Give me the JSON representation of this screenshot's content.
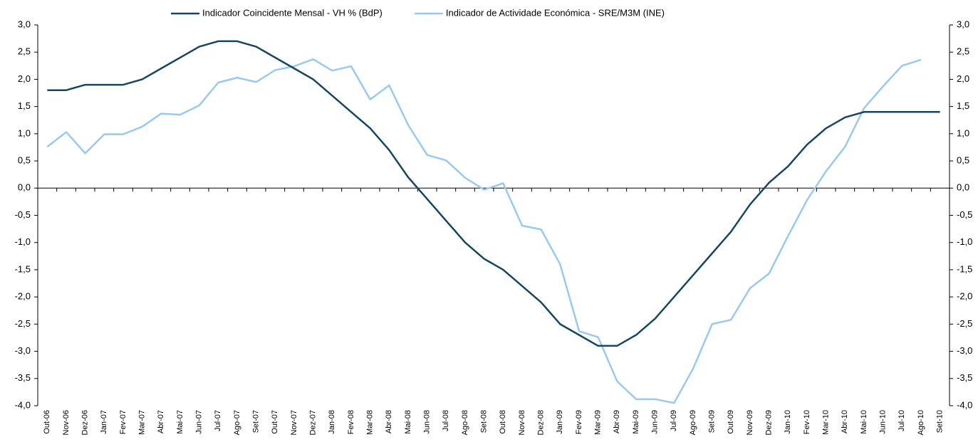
{
  "chart_data": {
    "type": "line",
    "categories": [
      "Out-06",
      "Nov-06",
      "Dez-06",
      "Jan-07",
      "Fev-07",
      "Mar-07",
      "Abr-07",
      "Mai-07",
      "Jun-07",
      "Jul-07",
      "Ago-07",
      "Set-07",
      "Out-07",
      "Nov-07",
      "Dez-07",
      "Jan-08",
      "Fev-08",
      "Mar-08",
      "Abr-08",
      "Mai-08",
      "Jun-08",
      "Jul-08",
      "Ago-08",
      "Set-08",
      "Out-08",
      "Nov-08",
      "Dez-08",
      "Jan-09",
      "Fev-09",
      "Mar-09",
      "Abr-09",
      "Mai-09",
      "Jun-09",
      "Jul-09",
      "Ago-09",
      "Set-09",
      "Out-09",
      "Nov-09",
      "Dez-09",
      "Jan-10",
      "Fev-10",
      "Mar-10",
      "Abr-10",
      "Mai-10",
      "Jun-10",
      "Jul-10",
      "Ago-10",
      "Set-10"
    ],
    "series": [
      {
        "name": "Indicador Coincidente Mensal - VH % (BdP)",
        "color": "#17475f",
        "values": [
          1.8,
          1.8,
          1.9,
          1.9,
          1.9,
          2.0,
          2.2,
          2.4,
          2.6,
          2.7,
          2.7,
          2.6,
          2.4,
          2.2,
          2.0,
          1.7,
          1.4,
          1.1,
          0.7,
          0.2,
          -0.2,
          -0.6,
          -1.0,
          -1.3,
          -1.5,
          -1.8,
          -2.1,
          -2.5,
          -2.7,
          -2.9,
          -2.9,
          -2.7,
          -2.4,
          -2.0,
          -1.6,
          -1.2,
          -0.8,
          -0.3,
          0.1,
          0.4,
          0.8,
          1.1,
          1.3,
          1.4,
          1.4,
          1.4,
          1.4,
          1.4
        ]
      },
      {
        "name": "Indicador de Actividade Económica - SRE/M3M (INE)",
        "color": "#99c9f0",
        "axis": "y2",
        "values": [
          0.76,
          1.03,
          0.64,
          0.99,
          0.99,
          1.13,
          1.37,
          1.35,
          1.52,
          1.94,
          2.03,
          1.95,
          2.17,
          2.24,
          2.37,
          2.16,
          2.24,
          1.63,
          1.89,
          1.16,
          0.61,
          0.51,
          0.19,
          -0.03,
          0.09,
          -0.69,
          -0.76,
          -1.4,
          -2.63,
          -2.74,
          -3.55,
          -3.88,
          -3.88,
          -3.95,
          -3.32,
          -2.5,
          -2.42,
          -1.84,
          -1.57,
          -0.88,
          -0.22,
          0.31,
          0.76,
          1.47,
          1.87,
          2.25,
          2.36,
          null
        ]
      }
    ],
    "ylim": [
      -4.0,
      3.0
    ],
    "yticks": [
      {
        "value": 3.0,
        "label": "3,0"
      },
      {
        "value": 2.5,
        "label": "2,5"
      },
      {
        "value": 2.0,
        "label": "2,0"
      },
      {
        "value": 1.5,
        "label": "1,5"
      },
      {
        "value": 1.0,
        "label": "1,0"
      },
      {
        "value": 0.5,
        "label": "0,5"
      },
      {
        "value": 0.0,
        "label": "0,0"
      },
      {
        "value": -0.5,
        "label": "-0,5"
      },
      {
        "value": -1.0,
        "label": "-1,0"
      },
      {
        "value": -1.5,
        "label": "-1,5"
      },
      {
        "value": -2.0,
        "label": "-2,0"
      },
      {
        "value": -2.5,
        "label": "-2,5"
      },
      {
        "value": -3.0,
        "label": "-3,0"
      },
      {
        "value": -3.5,
        "label": "-3,5"
      },
      {
        "value": -4.0,
        "label": "-4,0"
      }
    ],
    "y2lim": [
      -4.0,
      3.0
    ],
    "y2ticks": [
      {
        "value": 3.0,
        "label": "3,0"
      },
      {
        "value": 2.5,
        "label": "2,5"
      },
      {
        "value": 2.0,
        "label": "2,0"
      },
      {
        "value": 1.5,
        "label": "1,5"
      },
      {
        "value": 1.0,
        "label": "1,0"
      },
      {
        "value": 0.5,
        "label": "0,5"
      },
      {
        "value": 0.0,
        "label": "0,0"
      },
      {
        "value": -0.5,
        "label": "-0,5"
      },
      {
        "value": -1.0,
        "label": "-1,0"
      },
      {
        "value": -1.5,
        "label": "-1,5"
      },
      {
        "value": -2.0,
        "label": "-2,0"
      },
      {
        "value": -2.5,
        "label": "-2,5"
      },
      {
        "value": -3.0,
        "label": "-3,0"
      },
      {
        "value": -3.5,
        "label": "-3,5"
      },
      {
        "value": -4.0,
        "label": "-4,0"
      }
    ],
    "grid": false,
    "legend": "top"
  }
}
